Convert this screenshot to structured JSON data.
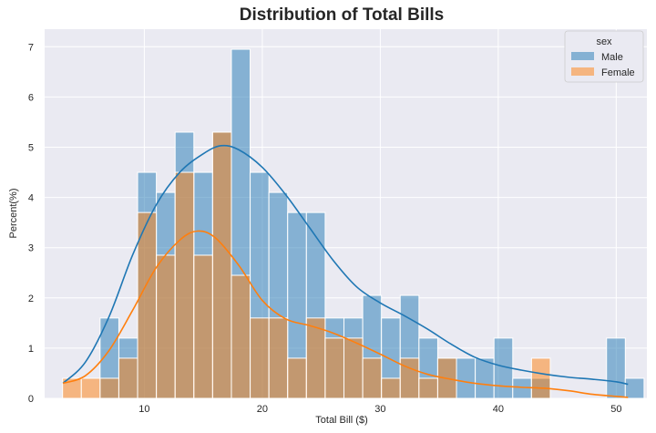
{
  "chart_data": {
    "type": "histogram",
    "title": "Distribution of Total Bills",
    "xlabel": "Total Bill ($)",
    "ylabel": "Percent(%)",
    "xlim": [
      1.55,
      52.6
    ],
    "ylim": [
      0,
      7.35
    ],
    "xticks": [
      10,
      20,
      30,
      40,
      50
    ],
    "yticks": [
      0,
      1,
      2,
      3,
      4,
      5,
      6,
      7
    ],
    "grid": true,
    "bin_start": 3.07,
    "bin_width": 1.59,
    "colors": {
      "Male": "#1f77b4",
      "Female": "#ff7f0e",
      "background": "#eaeaf2",
      "grid": "#ffffff"
    },
    "legend": {
      "title": "sex",
      "entries": [
        "Male",
        "Female"
      ],
      "position": "top-right"
    },
    "series": [
      {
        "name": "Male",
        "values": [
          0,
          0,
          1.6,
          1.2,
          4.5,
          4.1,
          5.3,
          4.5,
          5.3,
          6.95,
          4.5,
          4.1,
          3.7,
          3.7,
          1.6,
          1.6,
          2.05,
          1.6,
          2.05,
          1.2,
          0.8,
          0.8,
          0.8,
          1.2,
          0.4,
          0.4,
          0,
          0,
          0,
          1.2,
          0.4
        ]
      },
      {
        "name": "Female",
        "values": [
          0.4,
          0.4,
          0.4,
          0.8,
          3.7,
          2.85,
          4.5,
          2.85,
          5.3,
          2.45,
          1.6,
          1.6,
          0.8,
          1.6,
          1.2,
          1.2,
          0.8,
          0.4,
          0.8,
          0.4,
          0.8,
          0,
          0,
          0,
          0,
          0.8,
          0,
          0,
          0,
          0,
          0
        ]
      }
    ],
    "kde": [
      {
        "name": "Male",
        "x": [
          3.1,
          5,
          7,
          9,
          11,
          13,
          15,
          16.5,
          18,
          20,
          22,
          24,
          26,
          28,
          30,
          32,
          34,
          36,
          38,
          40,
          42,
          44,
          46,
          48,
          50,
          51
        ],
        "y": [
          0.3,
          0.72,
          1.62,
          2.85,
          3.85,
          4.5,
          4.87,
          5.03,
          4.95,
          4.6,
          4.05,
          3.4,
          2.75,
          2.22,
          1.9,
          1.65,
          1.38,
          1.08,
          0.82,
          0.66,
          0.56,
          0.48,
          0.42,
          0.38,
          0.33,
          0.28
        ]
      },
      {
        "name": "Female",
        "x": [
          3.1,
          5,
          7,
          9,
          11,
          13,
          14.5,
          16,
          18,
          20,
          22,
          24,
          26,
          28,
          30,
          32,
          34,
          36,
          38,
          40,
          42,
          44,
          46,
          48,
          50,
          51
        ],
        "y": [
          0.3,
          0.45,
          0.95,
          1.75,
          2.6,
          3.15,
          3.33,
          3.2,
          2.65,
          1.95,
          1.58,
          1.45,
          1.3,
          1.1,
          0.88,
          0.65,
          0.48,
          0.38,
          0.3,
          0.25,
          0.22,
          0.2,
          0.15,
          0.08,
          0.04,
          0.02
        ]
      }
    ]
  }
}
